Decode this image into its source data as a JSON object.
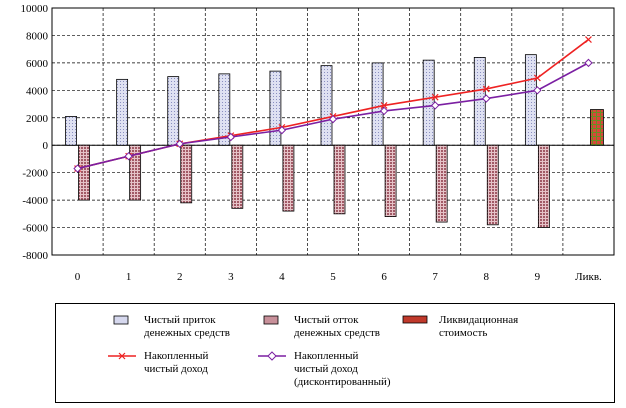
{
  "chart_data": {
    "type": "bar",
    "categories": [
      "0",
      "1",
      "2",
      "3",
      "4",
      "5",
      "6",
      "7",
      "8",
      "9",
      "Ликв."
    ],
    "ylim": [
      -8000,
      10000
    ],
    "yticks": [
      10000,
      8000,
      6000,
      4000,
      2000,
      0,
      -2000,
      -4000,
      -6000,
      -8000
    ],
    "ytick_labels": [
      "10000",
      "8000",
      "6000",
      "4000",
      "2000",
      "0",
      "-2000",
      "-4000",
      "-6000",
      "-8000"
    ],
    "grid": "dashed",
    "legend_position": "bottom",
    "series": [
      {
        "name": "Чистый приток денежных средств",
        "kind": "bar",
        "values": [
          2100,
          4800,
          5000,
          5200,
          5400,
          5800,
          6000,
          6200,
          6400,
          6600,
          null
        ]
      },
      {
        "name": "Чистый отток денежных средств",
        "kind": "bar",
        "values": [
          -4000,
          -4000,
          -4200,
          -4600,
          -4800,
          -5000,
          -5200,
          -5600,
          -5800,
          -6000,
          null
        ]
      },
      {
        "name": "Ликвидационная стоимость",
        "kind": "bar",
        "values": [
          null,
          null,
          null,
          null,
          null,
          null,
          null,
          null,
          null,
          null,
          2600
        ]
      },
      {
        "name": "Накопленный чистый доход",
        "kind": "line",
        "values": [
          -1700,
          -800,
          100,
          700,
          1300,
          2100,
          2900,
          3500,
          4100,
          4900,
          7700
        ]
      },
      {
        "name": "Накопленный чистый доход (дисконтированный)",
        "kind": "line",
        "values": [
          -1700,
          -800,
          100,
          600,
          1100,
          1900,
          2500,
          2900,
          3400,
          4000,
          6000
        ]
      }
    ],
    "colors": {
      "inflow_fill": "#d6d8ee",
      "outflow_fill": "#c8909a",
      "liquidation_fill": "#c0392b",
      "cumulative": "#ee2222",
      "discounted": "#7b1fa2"
    }
  },
  "legend": {
    "inflow": "Чистый приток\nденежных средств",
    "outflow": "Чистый отток\nденежных средств",
    "liquidation": "Ликвидационная\nстоимость",
    "cumulative": "Накопленный\nчистый доход",
    "discounted": "Накопленный\nчистый доход\n(дисконтированный)"
  }
}
